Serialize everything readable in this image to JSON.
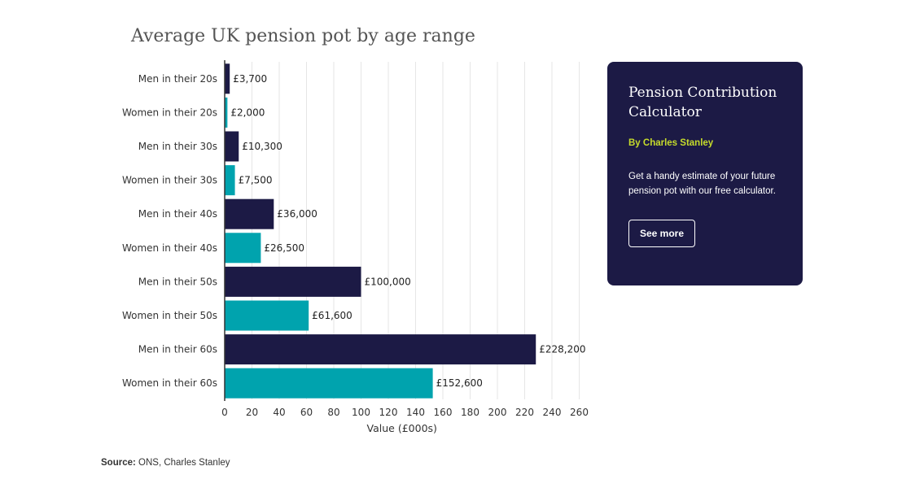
{
  "chart_data": {
    "type": "bar",
    "orientation": "horizontal",
    "title": "Average UK pension pot by age range",
    "xlabel": "Value (£000s)",
    "ylabel": "",
    "xlim": [
      0,
      260
    ],
    "xticks": [
      0,
      20,
      40,
      60,
      80,
      100,
      120,
      140,
      160,
      180,
      200,
      220,
      240,
      260
    ],
    "grid": true,
    "categories": [
      "Men in their 20s",
      "Women in their 20s",
      "Men in their 30s",
      "Women in their 30s",
      "Men in their 40s",
      "Women in their 40s",
      "Men in their 50s",
      "Women in their 50s",
      "Men in their 60s",
      "Women in their 60s"
    ],
    "values": [
      3.7,
      2.0,
      10.3,
      7.5,
      36.0,
      26.5,
      100.0,
      61.6,
      228.2,
      152.6
    ],
    "value_labels": [
      "£3,700",
      "£2,000",
      "£10,300",
      "£7,500",
      "£36,000",
      "£26,500",
      "£100,000",
      "£61,600",
      "£228,200",
      "£152,600"
    ],
    "colors": {
      "men": "#1c1a45",
      "women": "#00a3ae"
    }
  },
  "card": {
    "title": "Pension Contribution Calculator",
    "byline": "By Charles Stanley",
    "description": "Get a handy estimate of your future pension pot with our free calculator.",
    "button_label": "See more"
  },
  "source": {
    "label": "Source:",
    "text": " ONS, Charles Stanley"
  }
}
